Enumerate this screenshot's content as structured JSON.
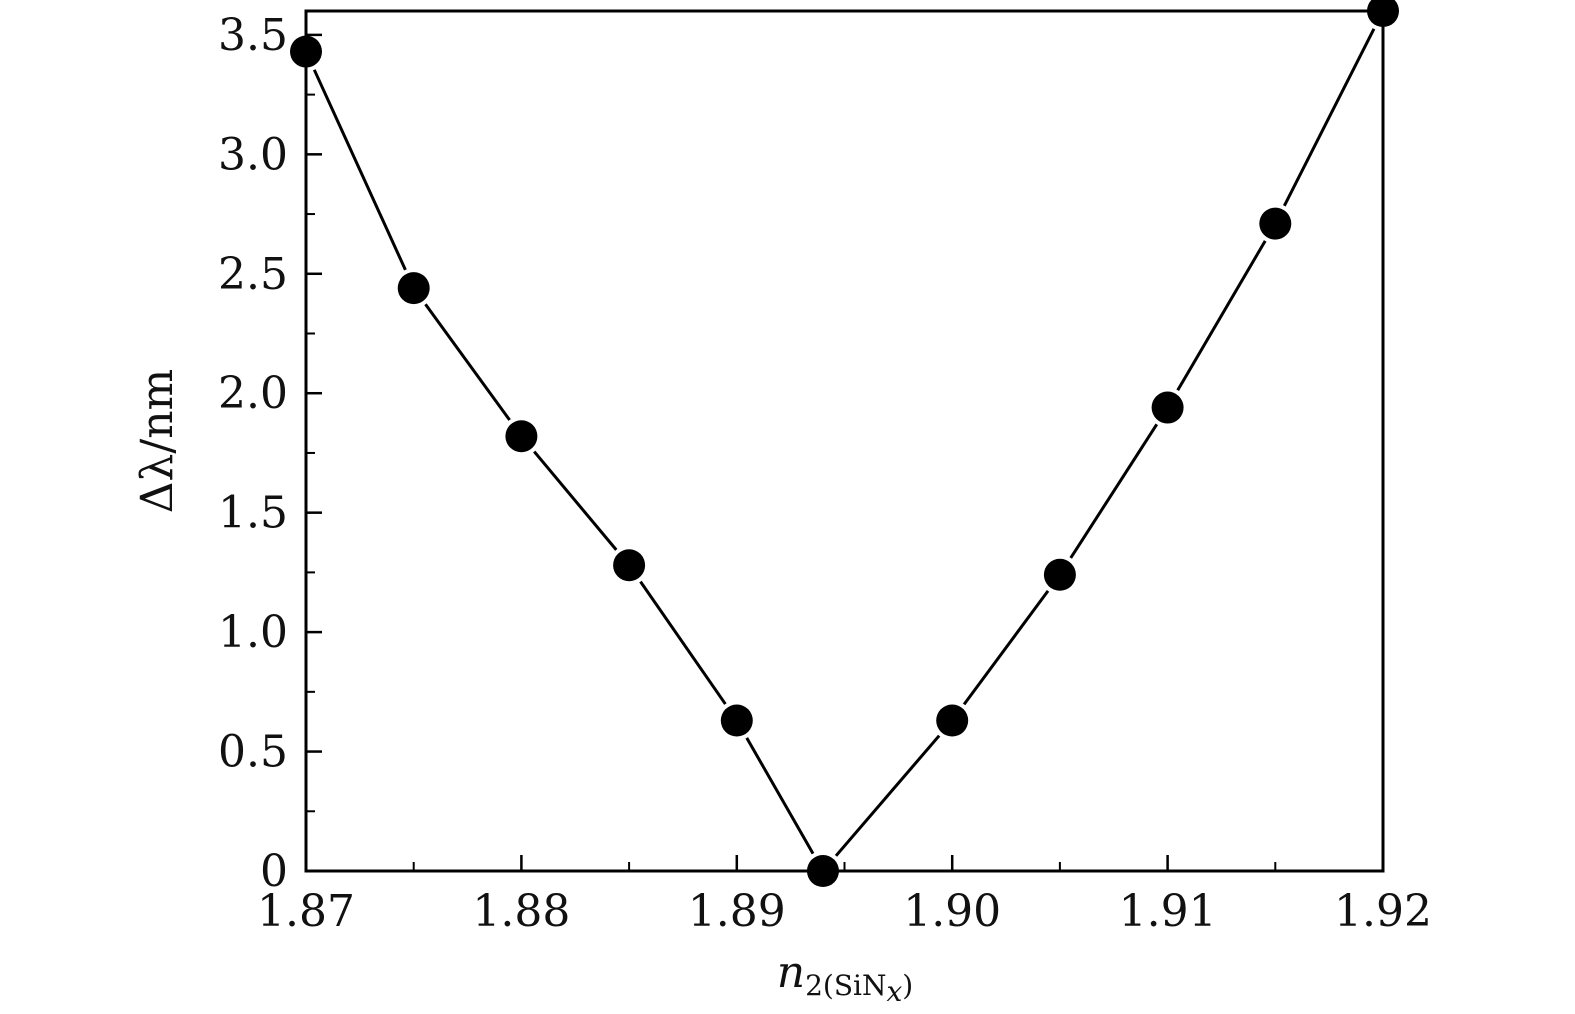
{
  "chart_data": {
    "type": "line",
    "title": "",
    "xlabel": {
      "symbol": "n",
      "subscript_prefix": "2(SiN",
      "subscript_var": "x",
      "subscript_suffix": ")"
    },
    "ylabel": "Δλ/nm",
    "xlim": [
      1.87,
      1.92
    ],
    "ylim": [
      0,
      3.6
    ],
    "x_ticks": [
      1.87,
      1.88,
      1.89,
      1.9,
      1.91,
      1.92
    ],
    "x_tick_labels": [
      "1.87",
      "1.88",
      "1.89",
      "1.90",
      "1.91",
      "1.92"
    ],
    "y_ticks": [
      0,
      0.5,
      1.0,
      1.5,
      2.0,
      2.5,
      3.0,
      3.5
    ],
    "y_tick_labels": [
      "0",
      "0.5",
      "1.0",
      "1.5",
      "2.0",
      "2.5",
      "3.0",
      "3.5"
    ],
    "grid": false,
    "legend": "none",
    "line_color": "#000000",
    "marker_color": "#000000",
    "marker": "filled-circle",
    "series": [
      {
        "x": [
          1.87,
          1.875,
          1.88,
          1.885,
          1.89,
          1.894,
          1.9,
          1.905,
          1.91,
          1.915,
          1.92
        ],
        "y": [
          3.43,
          2.44,
          1.82,
          1.28,
          0.63,
          0.0,
          0.63,
          1.24,
          1.94,
          2.71,
          3.6
        ]
      }
    ]
  }
}
